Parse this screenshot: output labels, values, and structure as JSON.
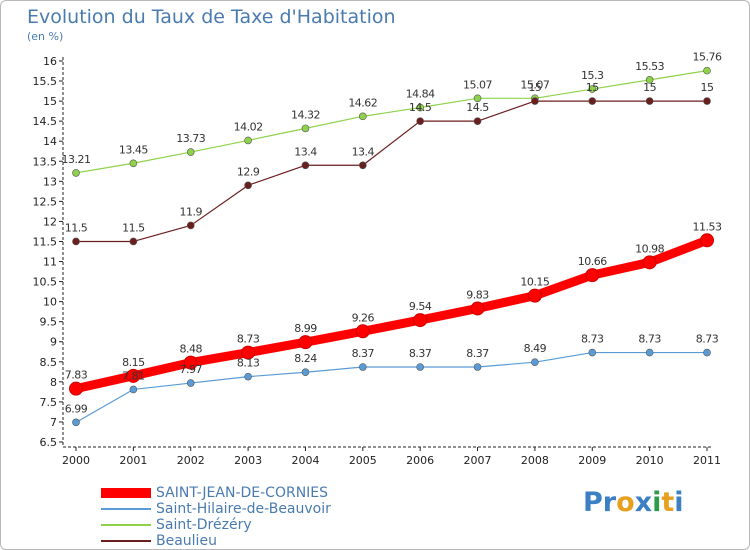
{
  "chart_data": {
    "type": "line",
    "title": "Evolution du Taux de Taxe d'Habitation",
    "subtitle": "(en %)",
    "x": [
      "2000",
      "2001",
      "2002",
      "2003",
      "2004",
      "2005",
      "2006",
      "2007",
      "2008",
      "2009",
      "2010",
      "2011"
    ],
    "yticks": [
      "6.5",
      "7",
      "7.5",
      "8",
      "8.5",
      "9",
      "9.5",
      "10",
      "10.5",
      "11",
      "11.5",
      "12",
      "12.5",
      "13",
      "13.5",
      "14",
      "14.5",
      "15",
      "15.5",
      "16"
    ],
    "ylim": [
      6.5,
      16
    ],
    "grid": false,
    "legend_position": "bottom-left",
    "series": [
      {
        "name": "SAINT-JEAN-DE-CORNIES",
        "color": "#ff0000",
        "values": [
          7.83,
          8.15,
          8.48,
          8.73,
          8.99,
          9.26,
          9.54,
          9.83,
          10.15,
          10.66,
          10.98,
          11.53
        ],
        "labels": [
          "7.83",
          "8.15",
          "8.48",
          "8.73",
          "8.99",
          "9.26",
          "9.54",
          "9.83",
          "10.15",
          "10.66",
          "10.98",
          "11.53"
        ]
      },
      {
        "name": "Saint-Hilaire-de-Beauvoir",
        "color": "#5b9bd5",
        "values": [
          6.99,
          7.81,
          7.97,
          8.13,
          8.24,
          8.37,
          8.37,
          8.37,
          8.49,
          8.73,
          8.73,
          8.73
        ],
        "labels": [
          "6.99",
          "7.81",
          "7.97",
          "8.13",
          "8.24",
          "8.37",
          "8.37",
          "8.37",
          "8.49",
          "8.73",
          "8.73",
          "8.73"
        ]
      },
      {
        "name": "Saint-Drézéry",
        "color": "#8fd24a",
        "values": [
          13.21,
          13.45,
          13.73,
          14.02,
          14.32,
          14.62,
          14.84,
          15.07,
          15.07,
          15.3,
          15.53,
          15.76
        ],
        "labels": [
          "13.21",
          "13.45",
          "13.73",
          "14.02",
          "14.32",
          "14.62",
          "14.84",
          "15.07",
          "15.07",
          "15.3",
          "15.53",
          "15.76"
        ]
      },
      {
        "name": "Beaulieu",
        "color": "#6b1e1e",
        "values": [
          11.5,
          11.5,
          11.9,
          12.9,
          13.4,
          13.4,
          14.5,
          14.5,
          15,
          15,
          15,
          15
        ],
        "labels": [
          "11.5",
          "11.5",
          "11.9",
          "12.9",
          "13.4",
          "13.4",
          "14.5",
          "14.5",
          "15",
          "15",
          "15",
          "15"
        ]
      }
    ]
  },
  "logo": {
    "letters": [
      "P",
      "r",
      "o",
      "x",
      "i",
      "t",
      "i"
    ],
    "colors": [
      "#3b7fc4",
      "#3b7fc4",
      "#e8a020",
      "#3b7fc4",
      "#2e9b4a",
      "#e8a020",
      "#3b7fc4"
    ]
  }
}
